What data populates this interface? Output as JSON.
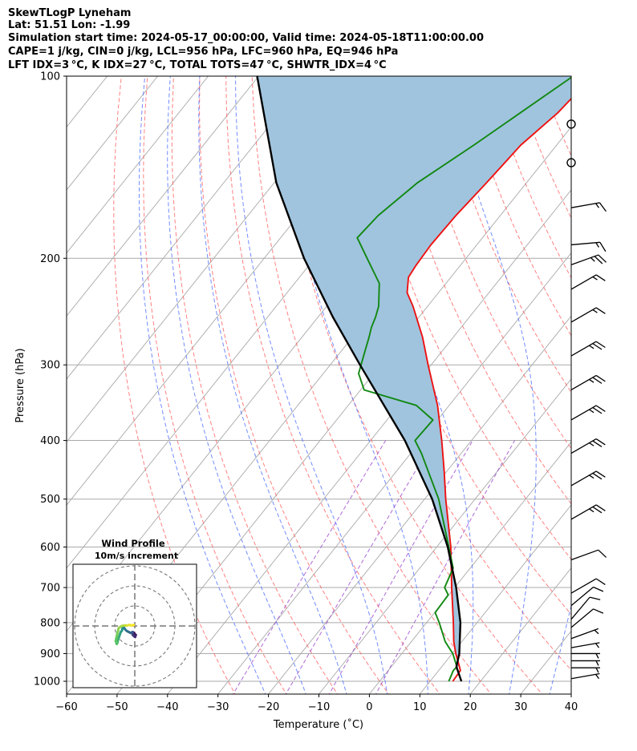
{
  "header": {
    "line1": "SkewTLogP Lyneham",
    "line2": "Lat: 51.51   Lon: -1.99",
    "line3": "Simulation start time: 2024-05-17_00:00:00, Valid time: 2024-05-18T11:00:00.00",
    "line4": "CAPE=1 j/kg, CIN=0 j/kg, LCL=956 hPa, LFC=960 hPa, EQ=946 hPa",
    "line5": "LFT IDX=3 °C, K IDX=27 °C, TOTAL TOTS=47 °C, SHWTR_IDX=4 °C"
  },
  "colors": {
    "temperature": "#ee1111",
    "dewpoint": "#118811",
    "parcel": "#000000",
    "cape_fill": "#a0c4de",
    "dry_adiabat": "#ff5555",
    "moist_adiabat": "#4466ff",
    "mixing_ratio": "#9944cc",
    "isotherm": "#aaaaaa"
  },
  "chart_data": {
    "type": "line",
    "skew": "skew-T log-P",
    "xlabel": "Temperature (˚C)",
    "ylabel": "Pressure (hPa)",
    "xlim": [
      -60,
      40
    ],
    "ylim": [
      1050,
      100
    ],
    "x_ticks": [
      "−60",
      "−50",
      "−40",
      "−30",
      "−20",
      "−10",
      "0",
      "10",
      "20",
      "30",
      "40"
    ],
    "x_tick_values": [
      -60,
      -50,
      -40,
      -30,
      -20,
      -10,
      0,
      10,
      20,
      30,
      40
    ],
    "y_ticks": [
      "100",
      "200",
      "300",
      "400",
      "500",
      "600",
      "700",
      "800",
      "900",
      "1000"
    ],
    "y_tick_values": [
      100,
      200,
      300,
      400,
      500,
      600,
      700,
      800,
      900,
      1000
    ],
    "series": [
      {
        "name": "Temperature",
        "pressure": [
          1000,
          960,
          946,
          900,
          860,
          800,
          700,
          600,
          500,
          450,
          400,
          350,
          300,
          270,
          240,
          228,
          215,
          205,
          190,
          170,
          150,
          130,
          115,
          100
        ],
        "values": [
          14.5,
          14.3,
          13.5,
          10.7,
          8.4,
          5.3,
          -0.6,
          -7.2,
          -15.8,
          -20.5,
          -25.9,
          -32.3,
          -40.6,
          -46.1,
          -52.9,
          -56.2,
          -58.4,
          -58.8,
          -59.1,
          -58.8,
          -57.9,
          -57.1,
          -54.9,
          -53.8
        ]
      },
      {
        "name": "Dewpoint",
        "pressure": [
          1000,
          960,
          946,
          900,
          860,
          800,
          770,
          720,
          700,
          650,
          600,
          500,
          420,
          400,
          370,
          350,
          330,
          310,
          290,
          270,
          260,
          250,
          240,
          220,
          200,
          185,
          170,
          150,
          130,
          100
        ],
        "values": [
          13.7,
          12.9,
          13.0,
          10.1,
          6.7,
          2.5,
          0.1,
          -0.1,
          -2.0,
          -3.4,
          -7.6,
          -17.2,
          -27.9,
          -31.2,
          -30.9,
          -36.5,
          -49.3,
          -53.0,
          -54.8,
          -56.7,
          -57.8,
          -58.6,
          -59.7,
          -63.2,
          -69.6,
          -74.8,
          -74.2,
          -71.6,
          -66.4,
          -57.7
        ]
      },
      {
        "name": "Parcel",
        "pressure": [
          1000,
          946,
          900,
          800,
          700,
          600,
          500,
          400,
          300,
          250,
          200,
          150,
          100
        ],
        "values": [
          16.2,
          12.9,
          11.4,
          6.7,
          0.3,
          -7.8,
          -18.5,
          -33.2,
          -54.1,
          -67.1,
          -82.1,
          -99.6,
          -120.3
        ]
      }
    ],
    "cape_region": "shaded between parcel and temperature profile",
    "wind_barbs": {
      "location": "right edge",
      "pressure": [
        120,
        139,
        165,
        190,
        205,
        225,
        255,
        290,
        330,
        370,
        420,
        475,
        540,
        630,
        715,
        750,
        790,
        815,
        850,
        880,
        900,
        925,
        950,
        990
      ],
      "speed_kt": [
        0,
        0,
        15,
        15,
        25,
        15,
        15,
        25,
        25,
        25,
        25,
        25,
        25,
        10,
        10,
        10,
        10,
        10,
        5,
        5,
        5,
        5,
        5,
        5
      ],
      "direction_deg": [
        0,
        0,
        260,
        265,
        250,
        240,
        240,
        240,
        240,
        240,
        240,
        240,
        240,
        250,
        240,
        230,
        220,
        230,
        250,
        260,
        270,
        270,
        270,
        260
      ]
    },
    "hodograph": {
      "title": "Wind Profile",
      "subtitle": "10m/s increment",
      "rings_ms": [
        10,
        20,
        30
      ],
      "u": [
        -1.0,
        -0.5,
        0.0,
        0.5,
        0.2,
        -0.5,
        -1.0,
        -1.2,
        -1.0,
        -1.5,
        -2.0,
        -3.0,
        -4.0,
        -5.0,
        -5.5,
        -6.0,
        -6.2,
        -6.5,
        -7.0,
        -7.5,
        -8.0,
        -8.5,
        -8.7,
        -9.0,
        -9.5,
        -9.0,
        -8.5,
        -8.0,
        -6.5,
        -5.0,
        -4.0,
        -3.0,
        -1.5,
        -0.5
      ],
      "v": [
        -3.0,
        -3.5,
        -4.0,
        -4.5,
        -5.5,
        -5.0,
        -4.5,
        -3.5,
        -3.0,
        -3.2,
        -3.5,
        -3.0,
        -2.5,
        -1.5,
        -0.5,
        -0.5,
        -1.5,
        -2.5,
        -3.0,
        -4.5,
        -6.0,
        -7.5,
        -8.5,
        -9.0,
        -7.5,
        -5.0,
        -3.0,
        -1.0,
        0.0,
        0.3,
        0.2,
        0.5,
        0.3,
        0.5
      ]
    }
  }
}
